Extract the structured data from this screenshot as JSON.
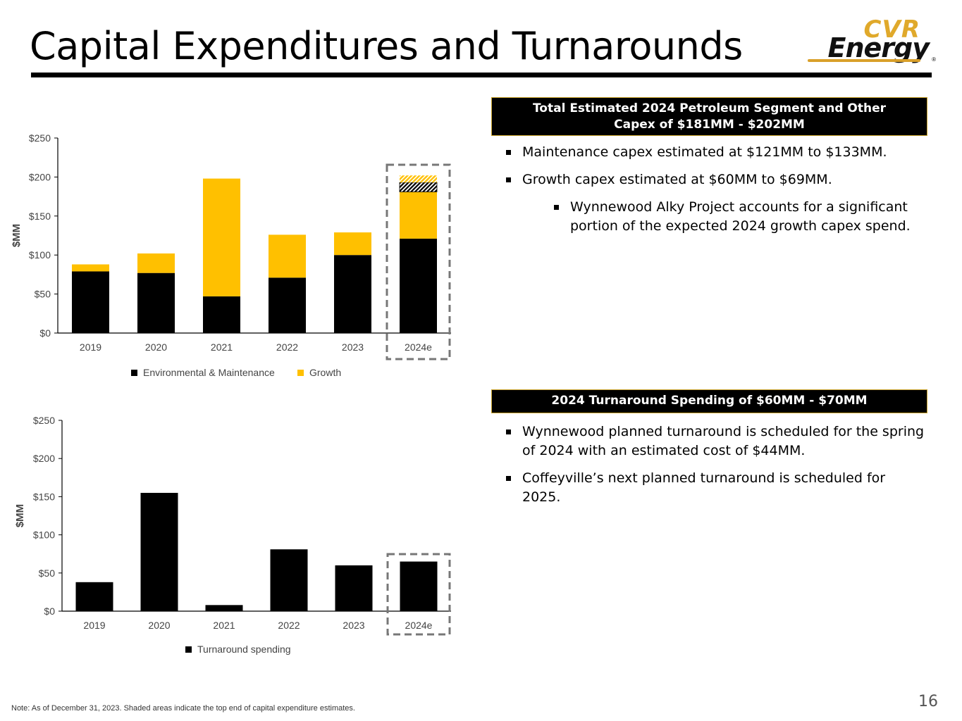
{
  "page": {
    "title": "Capital Expenditures and Turnarounds",
    "logo": {
      "top": "CVR",
      "bottom": "Energy",
      "reg": "®"
    },
    "page_number": "16",
    "note": "Note:  As of December 31, 2023. Shaded areas indicate the top end of capital expenditure estimates."
  },
  "capex_box": {
    "header_line1": "Total Estimated 2024 Petroleum Segment and Other",
    "header_line2": "Capex of $181MM - $202MM",
    "bullets": [
      "Maintenance capex estimated at $121MM to $133MM.",
      "Growth capex estimated at $60MM to $69MM.",
      "Wynnewood Alky Project accounts for a significant portion of the expected 2024 growth capex spend."
    ]
  },
  "turnaround_box": {
    "header": "2024 Turnaround Spending of $60MM - $70MM",
    "bullets": [
      "Wynnewood planned turnaround is scheduled for the spring of 2024 with an estimated cost of $44MM.",
      "Coffeyville’s next planned turnaround is scheduled for 2025."
    ]
  },
  "chart_data": [
    {
      "type": "bar",
      "stacked": true,
      "categories": [
        "2019",
        "2020",
        "2021",
        "2022",
        "2023",
        "2024e"
      ],
      "series": [
        {
          "name": "Environmental & Maintenance",
          "color": "#000000",
          "values": [
            79,
            77,
            47,
            71,
            100,
            121
          ]
        },
        {
          "name": "Growth",
          "color": "#FFC000",
          "values": [
            9,
            25,
            151,
            55,
            29,
            60
          ]
        }
      ],
      "shaded_top_end_2024e": {
        "maintenance_extra": 12,
        "growth_extra": 9
      },
      "highlighted_category": "2024e",
      "ylabel": "$MM",
      "yticks": [
        "$0",
        "$50",
        "$100",
        "$150",
        "$200",
        "$250"
      ],
      "ylim": [
        0,
        250
      ],
      "legend_position": "bottom"
    },
    {
      "type": "bar",
      "categories": [
        "2019",
        "2020",
        "2021",
        "2022",
        "2023",
        "2024e"
      ],
      "series": [
        {
          "name": "Turnaround spending",
          "color": "#000000",
          "values": [
            38,
            155,
            8,
            81,
            60,
            65
          ]
        }
      ],
      "highlighted_category": "2024e",
      "ylabel": "$MM",
      "yticks": [
        "$0",
        "$50",
        "$100",
        "$150",
        "$200",
        "$250"
      ],
      "ylim": [
        0,
        250
      ],
      "legend_position": "bottom"
    }
  ]
}
